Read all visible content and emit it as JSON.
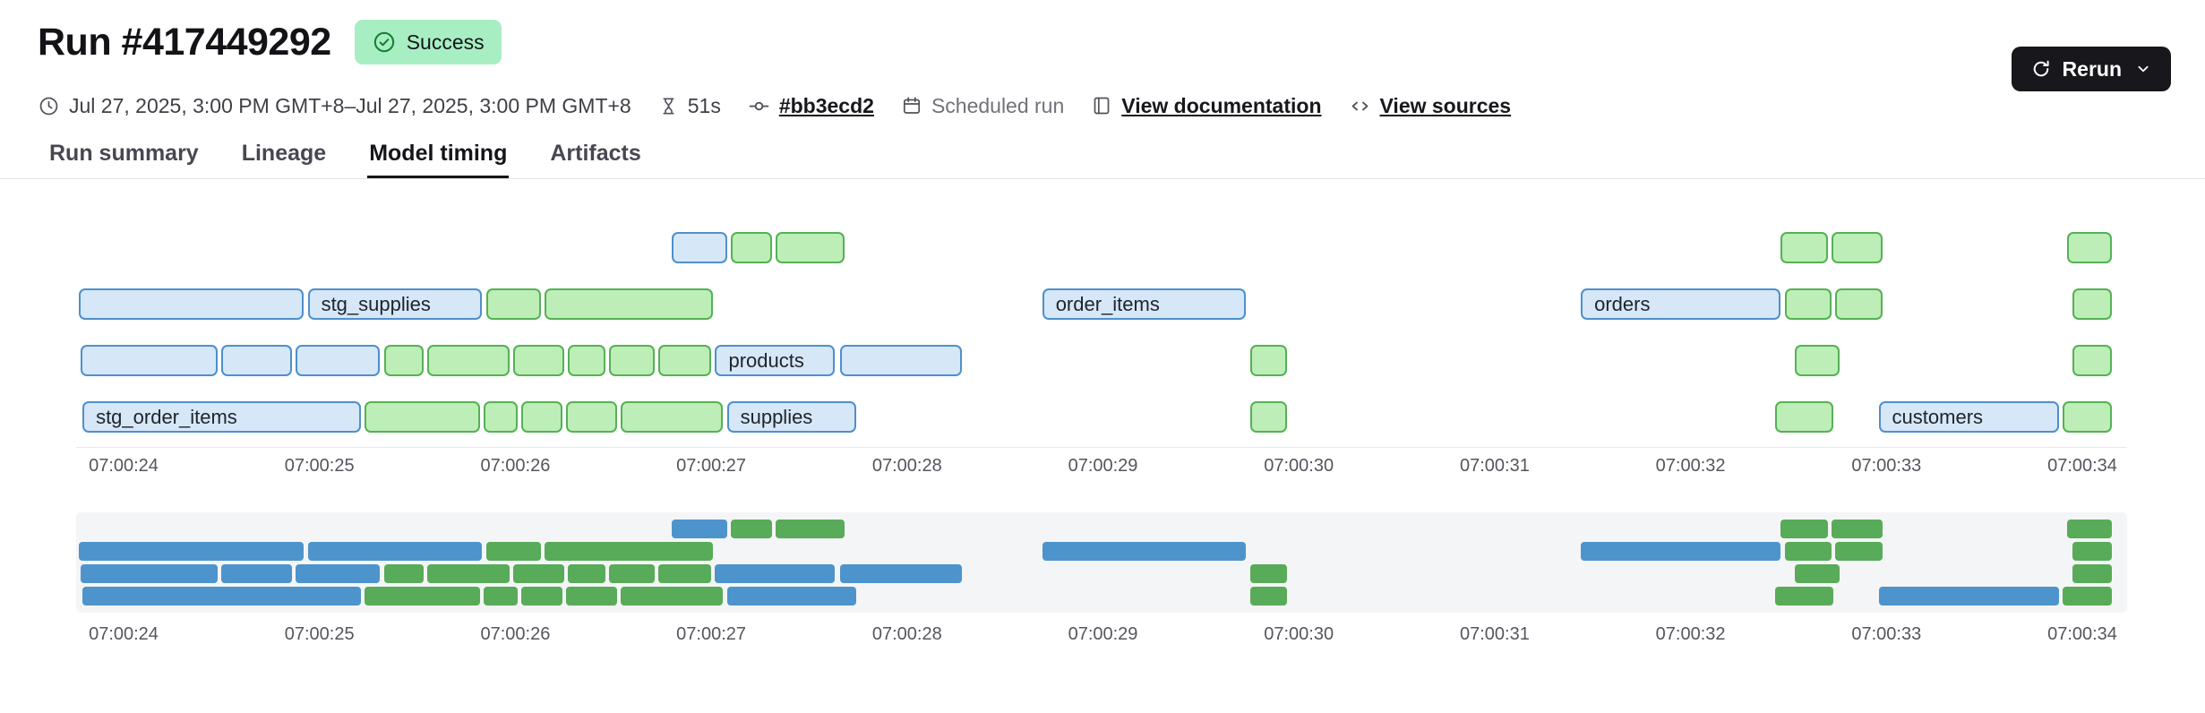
{
  "header": {
    "title": "Run #417449292",
    "status": "Success",
    "rerun_label": "Rerun"
  },
  "meta_items": [
    {
      "id": "schedule-time",
      "icon": "clock-icon",
      "text": "Jul 27, 2025, 3:00 PM GMT+8–Jul 27, 2025, 3:00 PM GMT+8",
      "style": "plain"
    },
    {
      "id": "duration",
      "icon": "hourglass-icon",
      "text": "51s",
      "style": "plain"
    },
    {
      "id": "commit",
      "icon": "commit-icon",
      "text": "#bb3ecd2",
      "style": "link"
    },
    {
      "id": "run-type",
      "icon": "calendar-icon",
      "text": "Scheduled run",
      "style": "muted"
    },
    {
      "id": "view-documentation",
      "icon": "doc-icon",
      "text": "View documentation",
      "style": "link"
    },
    {
      "id": "view-sources",
      "icon": "code-icon",
      "text": "View sources",
      "style": "link"
    }
  ],
  "tabs": [
    {
      "label": "Run summary",
      "active": false
    },
    {
      "label": "Lineage",
      "active": false
    },
    {
      "label": "Model timing",
      "active": true
    },
    {
      "label": "Artifacts",
      "active": false
    }
  ],
  "chart_data": {
    "type": "gantt",
    "time_unit": "seconds after 07:00:00",
    "time_axis": {
      "tick_seconds": [
        24,
        25,
        26,
        27,
        28,
        29,
        30,
        31,
        32,
        33,
        34
      ],
      "tick_labels": [
        "07:00:24",
        "07:00:25",
        "07:00:26",
        "07:00:27",
        "07:00:28",
        "07:00:29",
        "07:00:30",
        "07:00:31",
        "07:00:32",
        "07:00:33",
        "07:00:34"
      ]
    },
    "colors": {
      "blue_fill": "#d6e7f8",
      "blue_border": "#4f8fcc",
      "green_fill": "#bdeeb7",
      "green_border": "#55b155",
      "mini_blue": "#4d94cc",
      "mini_green": "#58ab58"
    },
    "has_minimap": true,
    "rows": [
      [
        {
          "s": 26.8,
          "e": 27.08,
          "c": "blue"
        },
        {
          "s": 27.1,
          "e": 27.31,
          "c": "green"
        },
        {
          "s": 27.33,
          "e": 27.68,
          "c": "green"
        },
        {
          "s": 32.46,
          "e": 32.7,
          "c": "green"
        },
        {
          "s": 32.72,
          "e": 32.98,
          "c": "green"
        },
        {
          "s": 33.92,
          "e": 34.15,
          "c": "green"
        }
      ],
      [
        {
          "s": 23.77,
          "e": 24.92,
          "c": "blue"
        },
        {
          "s": 24.94,
          "e": 25.83,
          "c": "blue",
          "label": "stg_supplies"
        },
        {
          "s": 25.85,
          "e": 26.13,
          "c": "green"
        },
        {
          "s": 26.15,
          "e": 27.01,
          "c": "green"
        },
        {
          "s": 28.69,
          "e": 29.73,
          "c": "blue",
          "label": "order_items"
        },
        {
          "s": 31.44,
          "e": 32.46,
          "c": "blue",
          "label": "orders"
        },
        {
          "s": 32.48,
          "e": 32.72,
          "c": "green"
        },
        {
          "s": 32.74,
          "e": 32.98,
          "c": "green"
        },
        {
          "s": 33.95,
          "e": 34.15,
          "c": "green"
        }
      ],
      [
        {
          "s": 23.78,
          "e": 24.48,
          "c": "blue"
        },
        {
          "s": 24.5,
          "e": 24.86,
          "c": "blue"
        },
        {
          "s": 24.88,
          "e": 25.31,
          "c": "blue"
        },
        {
          "s": 25.33,
          "e": 25.53,
          "c": "green"
        },
        {
          "s": 25.55,
          "e": 25.97,
          "c": "green"
        },
        {
          "s": 25.99,
          "e": 26.25,
          "c": "green"
        },
        {
          "s": 26.27,
          "e": 26.46,
          "c": "green"
        },
        {
          "s": 26.48,
          "e": 26.71,
          "c": "green"
        },
        {
          "s": 26.73,
          "e": 27.0,
          "c": "green"
        },
        {
          "s": 27.02,
          "e": 27.63,
          "c": "blue",
          "label": "products"
        },
        {
          "s": 27.66,
          "e": 28.28,
          "c": "blue"
        },
        {
          "s": 29.75,
          "e": 29.94,
          "c": "green"
        },
        {
          "s": 32.53,
          "e": 32.76,
          "c": "green"
        },
        {
          "s": 33.95,
          "e": 34.15,
          "c": "green"
        }
      ],
      [
        {
          "s": 23.79,
          "e": 25.21,
          "c": "blue",
          "label": "stg_order_items"
        },
        {
          "s": 25.23,
          "e": 25.82,
          "c": "green"
        },
        {
          "s": 25.84,
          "e": 26.01,
          "c": "green"
        },
        {
          "s": 26.03,
          "e": 26.24,
          "c": "green"
        },
        {
          "s": 26.26,
          "e": 26.52,
          "c": "green"
        },
        {
          "s": 26.54,
          "e": 27.06,
          "c": "green"
        },
        {
          "s": 27.08,
          "e": 27.74,
          "c": "blue",
          "label": "supplies"
        },
        {
          "s": 29.75,
          "e": 29.94,
          "c": "green"
        },
        {
          "s": 32.43,
          "e": 32.73,
          "c": "green"
        },
        {
          "s": 32.96,
          "e": 33.88,
          "c": "blue",
          "label": "customers"
        },
        {
          "s": 33.9,
          "e": 34.15,
          "c": "green"
        }
      ]
    ]
  }
}
